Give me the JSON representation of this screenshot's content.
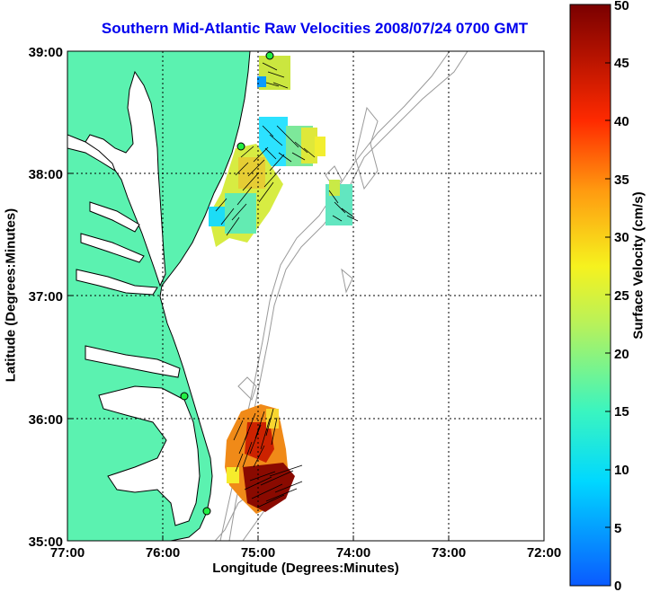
{
  "title": "Southern Mid-Atlantic Raw Velocities 2008/07/24 0700 GMT",
  "xlabel": "Longitude (Degrees:Minutes)",
  "ylabel": "Latitude (Degrees:Minutes)",
  "colorbar": {
    "label": "Surface Velocity (cm/s)",
    "ticks": [
      "0",
      "5",
      "10",
      "15",
      "20",
      "25",
      "30",
      "35",
      "40",
      "45",
      "50"
    ],
    "range": [
      0,
      50
    ]
  },
  "map": {
    "lon_ticks": [
      "77:00",
      "76:00",
      "75:00",
      "74:00",
      "73:00",
      "72:00"
    ],
    "lat_ticks": [
      "39:00",
      "38:00",
      "37:00",
      "36:00",
      "35:00"
    ],
    "land_color": "#5bf2b0",
    "contour_color": "#999999"
  }
}
